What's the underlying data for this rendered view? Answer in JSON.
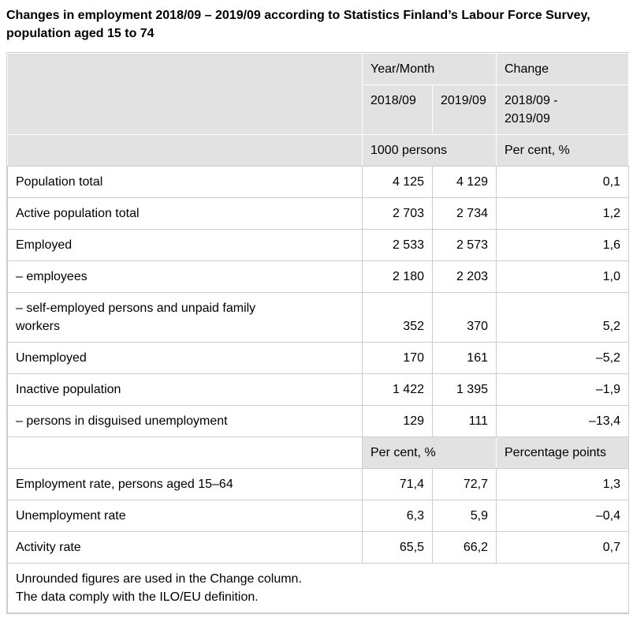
{
  "title": "Changes in employment 2018/09 – 2019/09 according to Statistics Finland’s Labour Force Survey, population aged 15 to 74",
  "table": {
    "header": {
      "year_month": "Year/Month",
      "change": "Change",
      "col_2018": "2018/09",
      "col_2019": "2019/09",
      "change_period": "2018/09 -\n2019/09",
      "unit_persons": "1000 persons",
      "unit_change": "Per cent, %"
    },
    "rows_1000_persons": [
      {
        "label": "Population total",
        "y2018": "4 125",
        "y2019": "4 129",
        "change": "0,1"
      },
      {
        "label": "Active population total",
        "y2018": "2 703",
        "y2019": "2 734",
        "change": "1,2"
      },
      {
        "label": "Employed",
        "y2018": "2 533",
        "y2019": "2 573",
        "change": "1,6"
      },
      {
        "label": "– employees",
        "y2018": "2 180",
        "y2019": "2 203",
        "change": "1,0"
      },
      {
        "label": "– self-employed persons and unpaid family\nworkers",
        "y2018": "352",
        "y2019": "370",
        "change": "5,2"
      },
      {
        "label": "Unemployed",
        "y2018": "170",
        "y2019": "161",
        "change": "–5,2"
      },
      {
        "label": "Inactive population",
        "y2018": "1 422",
        "y2019": "1 395",
        "change": "–1,9"
      },
      {
        "label": "– persons in disguised unemployment",
        "y2018": "129",
        "y2019": "111",
        "change": "–13,4"
      }
    ],
    "subheader": {
      "unit_rates": "Per cent, %",
      "unit_change": "Percentage points"
    },
    "rows_per_cent": [
      {
        "label": "Employment rate, persons aged 15–64",
        "y2018": "71,4",
        "y2019": "72,7",
        "change": "1,3"
      },
      {
        "label": "Unemployment rate",
        "y2018": "6,3",
        "y2019": "5,9",
        "change": "–0,4"
      },
      {
        "label": "Activity rate",
        "y2018": "65,5",
        "y2019": "66,2",
        "change": "0,7"
      }
    ],
    "footnotes": "Unrounded figures are used in the Change column.\nThe data comply with the ILO/EU definition."
  },
  "colors": {
    "header_background": "#e2e2e2",
    "border": "#cccccc",
    "header_separator": "#ffffff",
    "text": "#000000",
    "page_background": "#ffffff"
  }
}
